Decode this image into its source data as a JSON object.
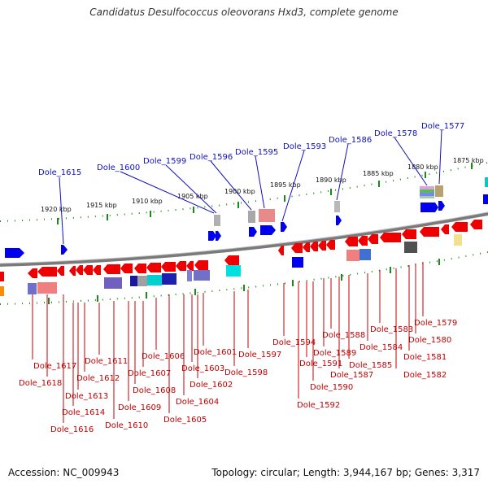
{
  "title": "Candidatus Desulfococcus oleovorans Hxd3, complete genome",
  "footer": {
    "accession": "Accession: NC_009943",
    "topology": "Topology: circular; Length: 3,944,167 bp; Genes: 3,317"
  },
  "colors": {
    "top_label": "#1010c0",
    "bottom_label": "#c00000",
    "forward_gene": "#0000ee",
    "reverse_gene": "#ee0000",
    "scale_tick": "#1a8a1a"
  },
  "kbp_labels": [
    "1920 kbp",
    "1915 kbp",
    "1910 kbp",
    "1905 kbp",
    "1900 kbp",
    "1895 kbp",
    "1890 kbp",
    "1885 kbp",
    "1880 kbp",
    "1875 kbp"
  ],
  "top_labels": [
    "Dole_1615",
    "Dole_1600",
    "Dole_1599",
    "Dole_1596",
    "Dole_1595",
    "Dole_1593",
    "Dole_1586",
    "Dole_1578",
    "Dole_1577"
  ],
  "bottom_labels": [
    "Dole_1617",
    "Dole_1618",
    "Dole_1616",
    "Dole_1614",
    "Dole_1613",
    "Dole_1612",
    "Dole_1611",
    "Dole_1610",
    "Dole_1609",
    "Dole_1608",
    "Dole_1607",
    "Dole_1606",
    "Dole_1605",
    "Dole_1604",
    "Dole_1603",
    "Dole_1602",
    "Dole_1601",
    "Dole_1598",
    "Dole_1597",
    "Dole_1594",
    "Dole_1592",
    "Dole_1591",
    "Dole_1590",
    "Dole_1589",
    "Dole_1588",
    "Dole_1587",
    "Dole_1585",
    "Dole_1584",
    "Dole_1583",
    "Dole_1582",
    "Dole_1581",
    "Dole_1580",
    "Dole_1579"
  ]
}
